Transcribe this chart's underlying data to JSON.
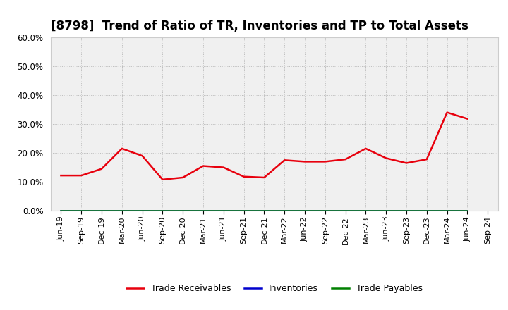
{
  "title": "[8798]  Trend of Ratio of TR, Inventories and TP to Total Assets",
  "x_labels": [
    "Jun-19",
    "Sep-19",
    "Dec-19",
    "Mar-20",
    "Jun-20",
    "Sep-20",
    "Dec-20",
    "Mar-21",
    "Jun-21",
    "Sep-21",
    "Dec-21",
    "Mar-22",
    "Jun-22",
    "Sep-22",
    "Dec-22",
    "Mar-23",
    "Jun-23",
    "Sep-23",
    "Dec-23",
    "Mar-24",
    "Jun-24",
    "Sep-24"
  ],
  "trade_receivables": [
    0.122,
    0.122,
    0.145,
    0.215,
    0.19,
    0.108,
    0.115,
    0.155,
    0.15,
    0.118,
    0.115,
    0.175,
    0.17,
    0.17,
    0.178,
    0.215,
    0.182,
    0.165,
    0.178,
    0.34,
    0.318,
    null
  ],
  "inventories": [
    0.0,
    0.0,
    0.0,
    0.0,
    0.0,
    0.0,
    0.0,
    0.0,
    0.0,
    0.0,
    0.0,
    0.0,
    0.0,
    0.0,
    0.0,
    0.0,
    0.0,
    0.0,
    0.0,
    0.0,
    0.0,
    null
  ],
  "trade_payables": [
    0.0,
    0.0,
    0.0,
    0.0,
    0.0,
    0.0,
    0.0,
    0.0,
    0.0,
    0.0,
    0.0,
    0.0,
    0.0,
    0.0,
    0.0,
    0.0,
    0.0,
    0.0,
    0.0,
    0.0,
    0.0,
    null
  ],
  "tr_color": "#e8000d",
  "inv_color": "#0000cd",
  "tp_color": "#008000",
  "ylim": [
    0.0,
    0.6
  ],
  "yticks": [
    0.0,
    0.1,
    0.2,
    0.3,
    0.4,
    0.5,
    0.6
  ],
  "bg_color": "#ffffff",
  "plot_bg_color": "#f0f0f0",
  "grid_color": "#bbbbbb",
  "title_fontsize": 12,
  "legend_labels": [
    "Trade Receivables",
    "Inventories",
    "Trade Payables"
  ]
}
